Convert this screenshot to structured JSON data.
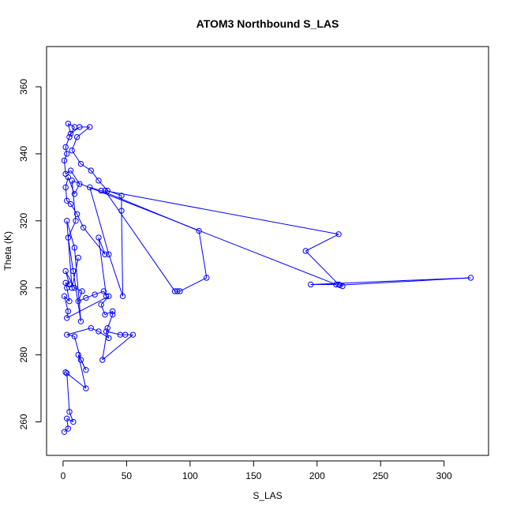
{
  "chart_data": {
    "type": "line",
    "title": "ATOM3 Northbound S_LAS",
    "xlabel": "S_LAS",
    "ylabel": "Theta (K)",
    "xlim": [
      -13,
      335
    ],
    "ylim": [
      250,
      372
    ],
    "xticks": [
      0,
      50,
      100,
      150,
      200,
      250,
      300
    ],
    "yticks": [
      260,
      280,
      300,
      320,
      340,
      360
    ],
    "grid": false,
    "legend": "none",
    "marker": "open-circle",
    "colors": {
      "series": "#0000ff",
      "axis": "#000000"
    },
    "series": [
      {
        "points": [
          [
            1,
            257
          ],
          [
            4,
            258
          ],
          [
            3,
            261
          ],
          [
            8,
            260
          ],
          [
            5,
            263
          ],
          [
            3,
            274.5
          ],
          [
            2,
            274.8
          ],
          [
            18,
            270
          ],
          [
            12,
            280
          ],
          [
            18,
            275.5
          ],
          [
            14,
            278.5
          ],
          [
            9,
            285.5
          ],
          [
            3,
            286
          ],
          [
            22,
            288
          ],
          [
            28,
            287
          ],
          [
            36,
            285
          ],
          [
            34,
            287
          ],
          [
            45,
            286
          ],
          [
            49,
            286
          ],
          [
            55,
            286
          ],
          [
            31,
            278.5
          ],
          [
            35,
            288
          ],
          [
            39,
            292
          ],
          [
            39,
            293
          ],
          [
            33,
            292
          ],
          [
            30,
            295
          ],
          [
            36,
            297.5
          ],
          [
            3,
            291
          ],
          [
            4,
            293
          ],
          [
            1,
            297.5
          ],
          [
            5,
            296
          ],
          [
            3,
            300
          ],
          [
            2,
            301.5
          ],
          [
            5,
            301
          ],
          [
            2,
            305
          ],
          [
            9,
            300
          ],
          [
            15,
            299
          ],
          [
            12,
            296
          ],
          [
            18,
            297
          ],
          [
            25,
            298
          ],
          [
            32,
            299
          ],
          [
            34,
            297.5
          ],
          [
            28,
            315
          ],
          [
            33,
            310
          ],
          [
            16,
            318
          ],
          [
            11,
            322
          ],
          [
            6,
            325
          ],
          [
            3,
            326
          ],
          [
            2,
            330
          ],
          [
            4,
            333
          ],
          [
            9,
            328
          ],
          [
            13,
            331
          ],
          [
            6,
            335
          ],
          [
            2,
            334
          ],
          [
            1,
            338
          ],
          [
            3,
            340
          ],
          [
            2,
            342
          ],
          [
            5,
            345
          ],
          [
            9,
            348
          ],
          [
            4,
            349
          ],
          [
            6,
            346
          ],
          [
            13,
            348
          ],
          [
            21,
            348
          ],
          [
            11,
            345
          ],
          [
            7,
            341
          ],
          [
            14,
            337
          ],
          [
            22,
            335
          ],
          [
            28,
            332
          ],
          [
            35,
            329
          ],
          [
            46,
            327.5
          ],
          [
            46,
            323
          ],
          [
            47,
            297.5
          ],
          [
            36,
            310
          ],
          [
            21,
            330
          ],
          [
            30,
            329
          ],
          [
            107,
            317
          ],
          [
            113,
            303
          ],
          [
            92,
            299
          ],
          [
            90,
            299
          ],
          [
            88,
            299
          ],
          [
            33,
            329
          ],
          [
            217,
            316
          ],
          [
            191,
            311
          ],
          [
            217,
            301
          ],
          [
            220,
            300.5
          ],
          [
            218,
            300.8
          ],
          [
            321,
            303
          ],
          [
            195,
            301
          ],
          [
            215,
            301
          ],
          [
            7,
            332
          ],
          [
            10,
            320
          ],
          [
            4,
            315
          ],
          [
            8,
            305
          ],
          [
            14,
            290
          ],
          [
            9,
            312
          ],
          [
            3,
            320
          ],
          [
            7,
            300
          ],
          [
            12,
            309
          ]
        ]
      }
    ]
  }
}
